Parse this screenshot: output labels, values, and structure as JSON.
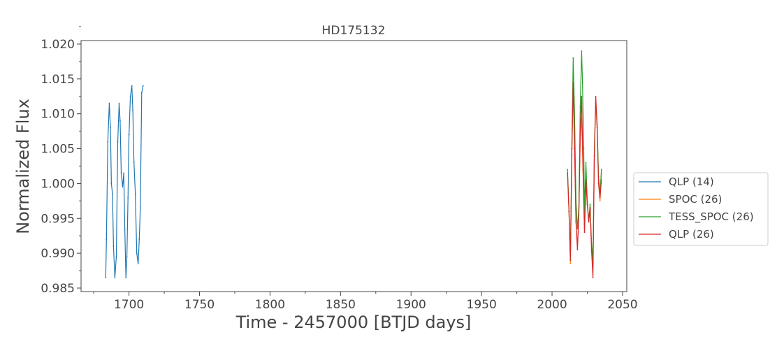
{
  "chart_data": {
    "type": "line",
    "title": "HD175132",
    "xlabel": "Time - 2457000 [BTJD days]",
    "ylabel": "Normalized Flux",
    "xlim": [
      1666,
      2053
    ],
    "ylim": [
      0.9845,
      1.0205
    ],
    "x_ticks": [
      1700,
      1750,
      1800,
      1850,
      1900,
      1950,
      2000,
      2050
    ],
    "x_tick_labels": [
      "1700",
      "1750",
      "1800",
      "1850",
      "1900",
      "1950",
      "2000",
      "2050"
    ],
    "y_ticks": [
      0.985,
      0.99,
      0.995,
      1.0,
      1.005,
      1.01,
      1.015,
      1.02
    ],
    "y_tick_labels": [
      "0.985",
      "0.990",
      "0.995",
      "1.000",
      "1.005",
      "1.010",
      "1.015",
      "1.020"
    ],
    "grid": false,
    "legend_position": "outside-right",
    "series": [
      {
        "name": "QLP (14)",
        "color": "#1f77b4",
        "x": [
          1683.5,
          1684.0,
          1685.0,
          1686.0,
          1686.8,
          1687.5,
          1688.3,
          1689.0,
          1690.0,
          1691.0,
          1692.0,
          1693.0,
          1693.7,
          1694.5,
          1695.5,
          1696.3,
          1697.0,
          1697.8,
          1698.5,
          1699.3,
          1700.0,
          1701.0,
          1702.0,
          1702.7,
          1703.5,
          1704.5,
          1705.5,
          1706.5,
          1707.3,
          1708.0,
          1709.0,
          1710.0
        ],
        "y": [
          0.9865,
          0.992,
          1.006,
          1.0115,
          1.008,
          1.0,
          0.9985,
          0.991,
          0.9865,
          0.9895,
          1.006,
          1.0115,
          1.009,
          1.0015,
          0.9995,
          1.0015,
          0.9935,
          0.9865,
          0.9895,
          0.998,
          1.007,
          1.0125,
          1.014,
          1.0105,
          1.003,
          0.9985,
          0.99,
          0.9885,
          0.992,
          0.9965,
          1.013,
          1.014
        ]
      },
      {
        "name": "SPOC (26)",
        "color": "#ff7f0e",
        "x": [
          2011.0,
          2012.0,
          2013.0,
          2014.0,
          2015.0,
          2016.0,
          2017.0,
          2018.0,
          2019.0,
          2020.0,
          2021.0,
          2022.0,
          2023.0,
          2024.0,
          2025.0,
          2026.0,
          2027.0,
          2028.0,
          2029.0,
          2030.0,
          2031.0,
          2032.0,
          2033.0,
          2034.0,
          2035.0
        ],
        "y": [
          1.0015,
          0.996,
          0.9885,
          1.004,
          1.0135,
          1.005,
          0.9945,
          0.991,
          0.9955,
          1.0065,
          1.0095,
          1.0015,
          0.993,
          1.0,
          0.997,
          0.995,
          0.9965,
          0.991,
          0.9885,
          1.004,
          1.0115,
          1.008,
          1.0,
          0.9975,
          1.0015
        ]
      },
      {
        "name": "TESS_SPOC (26)",
        "color": "#2ca02c",
        "x": [
          2011.0,
          2012.0,
          2013.0,
          2014.0,
          2015.0,
          2016.0,
          2017.0,
          2018.0,
          2019.0,
          2020.0,
          2021.0,
          2021.6,
          2022.5,
          2023.0,
          2024.0,
          2025.0,
          2026.0,
          2027.0,
          2028.0,
          2029.0,
          2030.0,
          2031.0,
          2032.0,
          2033.0,
          2034.0,
          2035.0
        ],
        "y": [
          1.002,
          0.996,
          0.989,
          1.005,
          1.018,
          1.01,
          0.9975,
          0.9935,
          0.9965,
          1.011,
          1.019,
          1.0145,
          1.005,
          0.996,
          1.003,
          0.9975,
          0.9945,
          0.997,
          0.9915,
          0.989,
          1.005,
          1.012,
          1.0085,
          1.001,
          0.9985,
          1.002
        ]
      },
      {
        "name": "QLP (26)",
        "color": "#d62728",
        "x": [
          2011.0,
          2012.0,
          2013.0,
          2014.0,
          2015.0,
          2016.0,
          2017.0,
          2018.0,
          2019.0,
          2020.0,
          2021.0,
          2022.0,
          2023.0,
          2024.0,
          2025.0,
          2026.0,
          2027.0,
          2028.0,
          2029.0,
          2030.0,
          2031.0,
          2032.0,
          2033.0,
          2034.0,
          2035.0
        ],
        "y": [
          1.0015,
          0.996,
          0.989,
          1.004,
          1.0145,
          1.005,
          0.9945,
          0.9905,
          0.9955,
          1.007,
          1.0125,
          1.002,
          0.993,
          1.0005,
          0.997,
          0.9945,
          0.9965,
          0.9905,
          0.9865,
          1.004,
          1.0125,
          1.008,
          1.0,
          0.998,
          1.0005
        ]
      }
    ]
  }
}
